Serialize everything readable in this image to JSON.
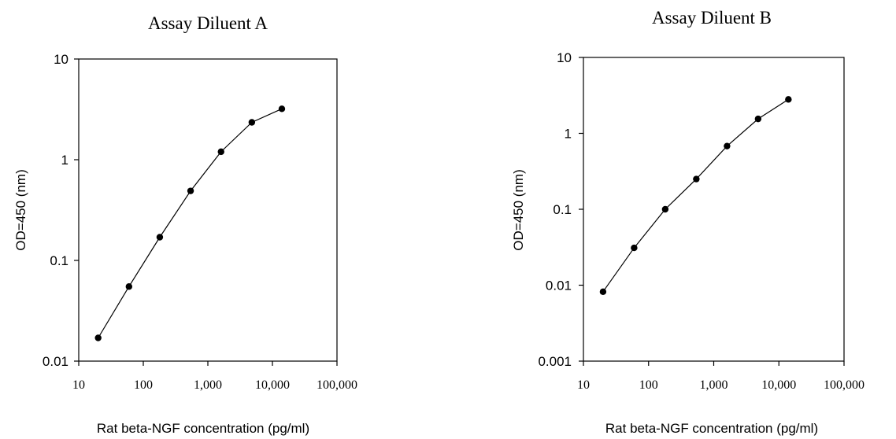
{
  "chart_data": [
    {
      "type": "line",
      "title": "Assay Diluent A",
      "xlabel": "Rat beta-NGF concentration (pg/ml)",
      "ylabel": "OD=450 (nm)",
      "xscale": "log",
      "yscale": "log",
      "xlim": [
        10,
        100000
      ],
      "ylim": [
        0.01,
        10
      ],
      "xticks": [
        10,
        100,
        1000,
        10000,
        100000
      ],
      "xticklabels": [
        "10",
        "100",
        "1,000",
        "10,000",
        "100,000"
      ],
      "yticks": [
        0.01,
        0.1,
        1,
        10
      ],
      "yticklabels": [
        "0.01",
        "0.1",
        "1",
        "10"
      ],
      "grid": false,
      "series": [
        {
          "x": [
            20,
            60,
            180,
            540,
            1600,
            4800,
            14000
          ],
          "y": [
            0.017,
            0.055,
            0.17,
            0.49,
            1.2,
            2.35,
            3.2
          ]
        }
      ]
    },
    {
      "type": "line",
      "title": "Assay Diluent B",
      "xlabel": "Rat beta-NGF concentration (pg/ml)",
      "ylabel": "OD=450 (nm)",
      "xscale": "log",
      "yscale": "log",
      "xlim": [
        10,
        100000
      ],
      "ylim": [
        0.001,
        10
      ],
      "xticks": [
        10,
        100,
        1000,
        10000,
        100000
      ],
      "xticklabels": [
        "10",
        "100",
        "1,000",
        "10,000",
        "100,000"
      ],
      "yticks": [
        0.001,
        0.01,
        0.1,
        1,
        10
      ],
      "yticklabels": [
        "0.001",
        "0.01",
        "0.1",
        "1",
        "10"
      ],
      "grid": false,
      "series": [
        {
          "x": [
            20,
            60,
            180,
            540,
            1600,
            4800,
            14000
          ],
          "y": [
            0.0082,
            0.031,
            0.1,
            0.25,
            0.68,
            1.55,
            2.8
          ]
        }
      ]
    }
  ]
}
